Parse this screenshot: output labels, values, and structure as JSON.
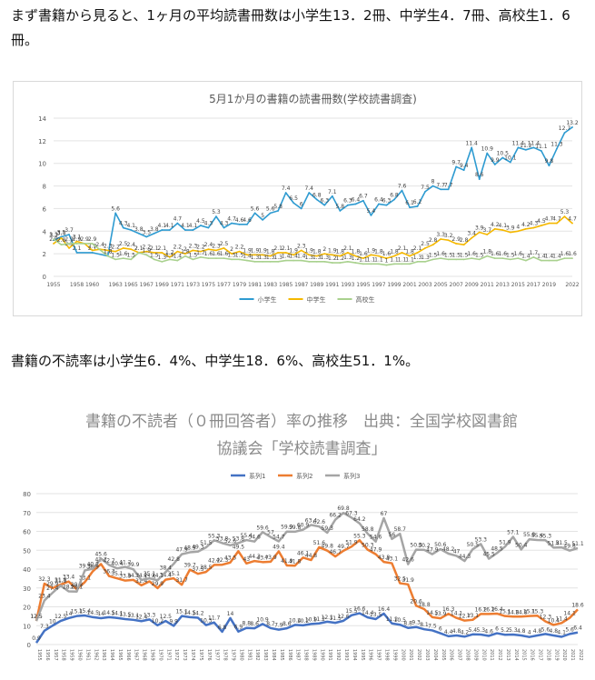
{
  "text": {
    "intro": "まず書籍から見ると、1ヶ月の平均読書冊数は小学生13．2冊、中学生4．7冊、高校生1．6冊。",
    "nonreaders": "書籍の不読率は小学生6．4%、中学生18．6%、高校生51．1%。"
  },
  "chart_data": [
    {
      "type": "line",
      "title": "5月1か月の書籍の読書冊数(学校読書調査)",
      "x_ticks": [
        "1955",
        "1958",
        "1960",
        "1963",
        "1965",
        "1967",
        "1969",
        "1971",
        "1973",
        "1975",
        "1977",
        "1979",
        "1981",
        "1983",
        "1985",
        "1987",
        "1989",
        "1991",
        "1993",
        "1995",
        "1997",
        "1999",
        "2001",
        "2003",
        "2005",
        "2007",
        "2009",
        "2011",
        "2013",
        "2015",
        "2017",
        "2019",
        "2022"
      ],
      "ylim": [
        0,
        14
      ],
      "y_ticks": [
        0,
        2,
        4,
        6,
        8,
        10,
        12,
        14
      ],
      "grid": true,
      "legend_position": "bottom",
      "series": [
        {
          "name": "小学生",
          "color": "#2e9bd1",
          "points": [
            [
              1955,
              3.2
            ],
            [
              1956,
              3.5
            ],
            [
              1957,
              3.7
            ],
            [
              1958,
              2.1
            ],
            [
              1960,
              2.1
            ],
            [
              1962,
              1.8
            ],
            [
              1963,
              5.6
            ],
            [
              1964,
              4.3
            ],
            [
              1965,
              4.1
            ],
            [
              1966,
              3.8
            ],
            [
              1967,
              3.5
            ],
            [
              1968,
              3.8
            ],
            [
              1969,
              4.1
            ],
            [
              1970,
              4.1
            ],
            [
              1971,
              4.7
            ],
            [
              1972,
              4.1
            ],
            [
              1973,
              4.1
            ],
            [
              1974,
              4.5
            ],
            [
              1975,
              4.3
            ],
            [
              1976,
              5.3
            ],
            [
              1977,
              4.3
            ],
            [
              1978,
              4.7
            ],
            [
              1979,
              4.6
            ],
            [
              1980,
              4.6
            ],
            [
              1981,
              5.6
            ],
            [
              1982,
              5
            ],
            [
              1983,
              5.6
            ],
            [
              1984,
              5.8
            ],
            [
              1985,
              7.4
            ],
            [
              1986,
              6.5
            ],
            [
              1987,
              6
            ],
            [
              1988,
              7.4
            ],
            [
              1989,
              6.8
            ],
            [
              1990,
              6.3
            ],
            [
              1991,
              7.1
            ],
            [
              1992,
              5.8
            ],
            [
              1993,
              6.3
            ],
            [
              1994,
              6.4
            ],
            [
              1995,
              6.7
            ],
            [
              1996,
              5.4
            ],
            [
              1997,
              6.4
            ],
            [
              1998,
              6.3
            ],
            [
              1999,
              6.8
            ],
            [
              2000,
              7.6
            ],
            [
              2001,
              6.1
            ],
            [
              2002,
              6.2
            ],
            [
              2003,
              7.5
            ],
            [
              2004,
              8
            ],
            [
              2005,
              7.7
            ],
            [
              2006,
              7.7
            ],
            [
              2007,
              9.7
            ],
            [
              2008,
              9.4
            ],
            [
              2009,
              11.4
            ],
            [
              2010,
              8.6
            ],
            [
              2011,
              10.9
            ],
            [
              2012,
              9.9
            ],
            [
              2013,
              10.5
            ],
            [
              2014,
              10.1
            ],
            [
              2015,
              11.4
            ],
            [
              2016,
              11.2
            ],
            [
              2017,
              11.4
            ],
            [
              2018,
              11.1
            ],
            [
              2019,
              9.8
            ],
            [
              2020,
              11.3
            ],
            [
              2021,
              12.7
            ],
            [
              2022,
              13.2
            ]
          ]
        },
        {
          "name": "中学生",
          "color": "#f5b800",
          "points": [
            [
              1955,
              2.9
            ],
            [
              1956,
              3.4
            ],
            [
              1957,
              2.5
            ],
            [
              1958,
              3.1
            ],
            [
              1959,
              2.9
            ],
            [
              1960,
              2.3
            ],
            [
              1961,
              2.4
            ],
            [
              1962,
              2.3
            ],
            [
              1963,
              2.2
            ],
            [
              1964,
              2.5
            ],
            [
              1965,
              2.4
            ],
            [
              1966,
              2.1
            ],
            [
              1967,
              2.2
            ],
            [
              1968,
              2.1
            ],
            [
              1969,
              2.1
            ],
            [
              1970,
              1.7
            ],
            [
              1971,
              2.2
            ],
            [
              1972,
              2
            ],
            [
              1973,
              2.3
            ],
            [
              1974,
              2.2
            ],
            [
              1975,
              2.4
            ],
            [
              1976,
              2.3
            ],
            [
              1977,
              2.5
            ],
            [
              1978,
              2
            ],
            [
              1979,
              2.2
            ],
            [
              1980,
              1.9
            ],
            [
              1981,
              1.9
            ],
            [
              1982,
              1.9
            ],
            [
              1983,
              1.8
            ],
            [
              1984,
              2.1
            ],
            [
              1985,
              2.1
            ],
            [
              1986,
              1.9
            ],
            [
              1987,
              2.3
            ],
            [
              1988,
              1.9
            ],
            [
              1989,
              1.8
            ],
            [
              1990,
              2
            ],
            [
              1991,
              1.9
            ],
            [
              1992,
              1.8
            ],
            [
              1993,
              2.1
            ],
            [
              1994,
              1.8
            ],
            [
              1995,
              1.6
            ],
            [
              1996,
              1.9
            ],
            [
              1997,
              1.8
            ],
            [
              1998,
              1.6
            ],
            [
              1999,
              1.8
            ],
            [
              2000,
              2.1
            ],
            [
              2001,
              1.8
            ],
            [
              2002,
              2.1
            ],
            [
              2003,
              2.5
            ],
            [
              2004,
              2.8
            ],
            [
              2005,
              3.3
            ],
            [
              2006,
              3.2
            ],
            [
              2007,
              2.9
            ],
            [
              2008,
              2.8
            ],
            [
              2009,
              3.4
            ],
            [
              2010,
              3.9
            ],
            [
              2011,
              3.7
            ],
            [
              2012,
              4.2
            ],
            [
              2013,
              4.1
            ],
            [
              2014,
              3.9
            ],
            [
              2015,
              4
            ],
            [
              2016,
              4.2
            ],
            [
              2017,
              4.3
            ],
            [
              2018,
              4.5
            ],
            [
              2019,
              4.7
            ],
            [
              2020,
              4.7
            ],
            [
              2021,
              5.3
            ],
            [
              2022,
              4.7
            ]
          ]
        },
        {
          "name": "高校生",
          "color": "#a9d18e",
          "points": [
            [
              1955,
              3.3
            ],
            [
              1956,
              2.8
            ],
            [
              1957,
              2.9
            ],
            [
              1958,
              2.9
            ],
            [
              1960,
              2.9
            ],
            [
              1962,
              1.8
            ],
            [
              1963,
              1.5
            ],
            [
              1964,
              1.6
            ],
            [
              1965,
              1.5
            ],
            [
              1966,
              2.1
            ],
            [
              1967,
              1.9
            ],
            [
              1968,
              1.5
            ],
            [
              1969,
              1.3
            ],
            [
              1970,
              1.5
            ],
            [
              1971,
              1.4
            ],
            [
              1972,
              1.8
            ],
            [
              1973,
              1.5
            ],
            [
              1974,
              1.7
            ],
            [
              1975,
              1.6
            ],
            [
              1976,
              1.6
            ],
            [
              1977,
              1.6
            ],
            [
              1978,
              1.5
            ],
            [
              1979,
              1.5
            ],
            [
              1980,
              1.4
            ],
            [
              1981,
              1.3
            ],
            [
              1982,
              1.3
            ],
            [
              1983,
              1.3
            ],
            [
              1984,
              1.3
            ],
            [
              1985,
              1.4
            ],
            [
              1986,
              1.4
            ],
            [
              1987,
              1.4
            ],
            [
              1988,
              1.3
            ],
            [
              1989,
              1.3
            ],
            [
              1990,
              1.3
            ],
            [
              1991,
              1.2
            ],
            [
              1992,
              1.2
            ],
            [
              1993,
              1.3
            ],
            [
              1994,
              1.2
            ],
            [
              1995,
              1.1
            ],
            [
              1996,
              1.1
            ],
            [
              1997,
              1.1
            ],
            [
              1998,
              1
            ],
            [
              1999,
              1.1
            ],
            [
              2000,
              1.1
            ],
            [
              2001,
              1.1
            ],
            [
              2002,
              1.3
            ],
            [
              2003,
              1.3
            ],
            [
              2004,
              1.5
            ],
            [
              2005,
              1.6
            ],
            [
              2006,
              1.5
            ],
            [
              2007,
              1.5
            ],
            [
              2008,
              1.5
            ],
            [
              2009,
              1.6
            ],
            [
              2010,
              1.5
            ],
            [
              2011,
              1.8
            ],
            [
              2012,
              1.6
            ],
            [
              2013,
              1.6
            ],
            [
              2014,
              1.5
            ],
            [
              2015,
              1.6
            ],
            [
              2016,
              1.4
            ],
            [
              2017,
              1.7
            ],
            [
              2018,
              1.4
            ],
            [
              2019,
              1.4
            ],
            [
              2020,
              1.4
            ],
            [
              2021,
              1.6
            ],
            [
              2022,
              1.6
            ]
          ]
        }
      ]
    },
    {
      "type": "line",
      "title": "書籍の不読者（０冊回答者）率の推移　出典：全国学校図書館協議会「学校読書調査」",
      "x_start": 1955,
      "x_end": 2022,
      "ylim": [
        0,
        80
      ],
      "y_ticks": [
        0,
        10,
        20,
        30,
        40,
        50,
        60,
        70,
        80
      ],
      "grid": true,
      "legend_position": "top",
      "series": [
        {
          "name": "系列1",
          "color": "#4472c4",
          "values": [
            0.9,
            7.3,
            10,
            12.5,
            14,
            15.1,
            15.4,
            14.5,
            14,
            14.5,
            14.1,
            13.5,
            13.1,
            12.4,
            13.3,
            10.2,
            12.5,
            9.9,
            15.1,
            14.5,
            14.2,
            10.3,
            11.7,
            6.8,
            14,
            6.9,
            8.8,
            8.6,
            10.9,
            8.7,
            7.9,
            8.6,
            10.4,
            10.2,
            10.9,
            11.2,
            12.1,
            11.5,
            12.6,
            15.5,
            16.6,
            14.4,
            13.5,
            16.4,
            11.2,
            10.5,
            8.8,
            9.3,
            8.1,
            7.5,
            6,
            4.4,
            4.8,
            4.2,
            5.4,
            5.3,
            4.6,
            6,
            5.2,
            5.3,
            4.8,
            4,
            4.8,
            5.6,
            4.8,
            4.1,
            5.6,
            6.4
          ]
        },
        {
          "name": "系列2",
          "color": "#ed7d31",
          "values": [
            12.5,
            32.3,
            29.9,
            31.8,
            33.4,
            29.3,
            33.1,
            38.9,
            42.7,
            36.3,
            35.1,
            33.9,
            34.3,
            31.4,
            33.5,
            29.9,
            34.4,
            35.1,
            31.7,
            39.7,
            37.5,
            38.5,
            42.2,
            42.3,
            43.5,
            49.5,
            43,
            44.3,
            43.7,
            43.9,
            49.4,
            41.9,
            41.8,
            46.1,
            44.8,
            51.6,
            49.8,
            46.7,
            49.7,
            51.9,
            55.3,
            50.3,
            47.9,
            43.8,
            43.1,
            32.5,
            31.9,
            20.6,
            18.8,
            14.5,
            13.9,
            16.3,
            14.1,
            12.7,
            13.1,
            16.2,
            16.2,
            16.4,
            15.1,
            14.8,
            14.8,
            15.1,
            15.3,
            12.3,
            10.4,
            11.4,
            14.1,
            18.6
          ]
        },
        {
          "name": "系列3",
          "color": "#a5a5a5",
          "values": [
            12.5,
            23.4,
            27.4,
            31.3,
            28.2,
            28.1,
            39.3,
            40.2,
            45.6,
            42.2,
            40.4,
            41.2,
            39.9,
            34.2,
            35.1,
            34.1,
            38.4,
            42.8,
            47.9,
            48.9,
            49.3,
            51.5,
            55.3,
            53.8,
            52.6,
            53.8,
            55.4,
            54.6,
            59.6,
            57,
            54.7,
            59.9,
            59.8,
            60.9,
            63.4,
            62.6,
            59.3,
            66.2,
            69.8,
            67.3,
            64.2,
            58.8,
            54.6,
            67,
            56,
            58.7,
            42.6,
            50.3,
            50.2,
            47.9,
            50.6,
            48.2,
            47,
            44.3,
            50.5,
            53.3,
            45.5,
            48.5,
            51.9,
            57.1,
            50.4,
            55.8,
            55.4,
            55.3,
            51.4,
            51.5,
            49.8,
            51.1
          ]
        }
      ]
    }
  ]
}
